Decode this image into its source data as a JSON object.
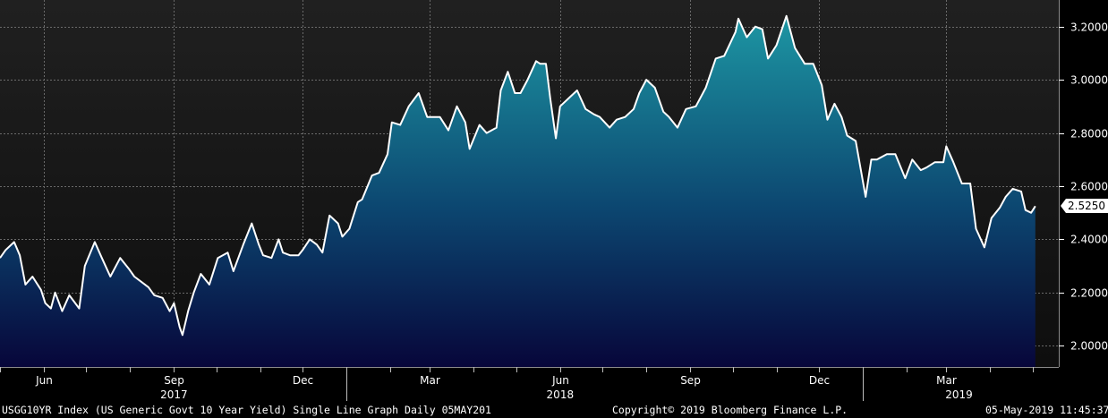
{
  "chart_data": {
    "type": "area",
    "ylim": [
      1.92,
      3.3
    ],
    "y_ticks": [
      "2.0000",
      "2.2000",
      "2.4000",
      "2.6000",
      "2.8000",
      "3.0000",
      "3.2000"
    ],
    "y_tick_values": [
      2.0,
      2.2,
      2.4,
      2.6,
      2.8,
      3.0,
      3.2
    ],
    "grid": true,
    "last_value": 2.525,
    "last_value_label": "2.5250",
    "x_month_ticks": [
      {
        "label": "Jun",
        "date": "2017-06-01"
      },
      {
        "label": "Sep",
        "date": "2017-09-01"
      },
      {
        "label": "Dec",
        "date": "2017-12-01"
      },
      {
        "label": "Mar",
        "date": "2018-03-01"
      },
      {
        "label": "Jun",
        "date": "2018-06-01"
      },
      {
        "label": "Sep",
        "date": "2018-09-01"
      },
      {
        "label": "Dec",
        "date": "2018-12-01"
      },
      {
        "label": "Mar",
        "date": "2019-03-01"
      }
    ],
    "x_year_labels": [
      {
        "label": "2017",
        "date": "2017-09-01"
      },
      {
        "label": "2018",
        "date": "2018-06-01"
      },
      {
        "label": "2019",
        "date": "2019-03-10"
      }
    ],
    "x_year_dividers": [
      "2018-01-01",
      "2019-01-01"
    ],
    "x_range": [
      "2017-05-01",
      "2019-05-05"
    ],
    "series": [
      {
        "color": "#ffffff",
        "points": [
          [
            "2017-05-01",
            2.33
          ],
          [
            "2017-05-05",
            2.36
          ],
          [
            "2017-05-11",
            2.39
          ],
          [
            "2017-05-15",
            2.34
          ],
          [
            "2017-05-19",
            2.23
          ],
          [
            "2017-05-24",
            2.26
          ],
          [
            "2017-05-30",
            2.21
          ],
          [
            "2017-06-02",
            2.16
          ],
          [
            "2017-06-06",
            2.14
          ],
          [
            "2017-06-09",
            2.2
          ],
          [
            "2017-06-14",
            2.13
          ],
          [
            "2017-06-19",
            2.19
          ],
          [
            "2017-06-26",
            2.14
          ],
          [
            "2017-06-30",
            2.3
          ],
          [
            "2017-07-07",
            2.39
          ],
          [
            "2017-07-12",
            2.33
          ],
          [
            "2017-07-18",
            2.26
          ],
          [
            "2017-07-25",
            2.33
          ],
          [
            "2017-07-31",
            2.29
          ],
          [
            "2017-08-04",
            2.26
          ],
          [
            "2017-08-09",
            2.24
          ],
          [
            "2017-08-14",
            2.22
          ],
          [
            "2017-08-18",
            2.19
          ],
          [
            "2017-08-24",
            2.18
          ],
          [
            "2017-08-29",
            2.13
          ],
          [
            "2017-09-01",
            2.16
          ],
          [
            "2017-09-05",
            2.07
          ],
          [
            "2017-09-07",
            2.04
          ],
          [
            "2017-09-11",
            2.13
          ],
          [
            "2017-09-15",
            2.2
          ],
          [
            "2017-09-20",
            2.27
          ],
          [
            "2017-09-26",
            2.23
          ],
          [
            "2017-10-02",
            2.33
          ],
          [
            "2017-10-09",
            2.35
          ],
          [
            "2017-10-13",
            2.28
          ],
          [
            "2017-10-20",
            2.38
          ],
          [
            "2017-10-26",
            2.46
          ],
          [
            "2017-10-31",
            2.38
          ],
          [
            "2017-11-03",
            2.34
          ],
          [
            "2017-11-09",
            2.33
          ],
          [
            "2017-11-14",
            2.4
          ],
          [
            "2017-11-17",
            2.35
          ],
          [
            "2017-11-22",
            2.34
          ],
          [
            "2017-11-28",
            2.34
          ],
          [
            "2017-12-01",
            2.36
          ],
          [
            "2017-12-06",
            2.4
          ],
          [
            "2017-12-11",
            2.38
          ],
          [
            "2017-12-15",
            2.35
          ],
          [
            "2017-12-20",
            2.49
          ],
          [
            "2017-12-26",
            2.46
          ],
          [
            "2017-12-29",
            2.41
          ],
          [
            "2018-01-03",
            2.44
          ],
          [
            "2018-01-09",
            2.54
          ],
          [
            "2018-01-12",
            2.55
          ],
          [
            "2018-01-19",
            2.64
          ],
          [
            "2018-01-24",
            2.65
          ],
          [
            "2018-01-30",
            2.72
          ],
          [
            "2018-02-02",
            2.84
          ],
          [
            "2018-02-08",
            2.83
          ],
          [
            "2018-02-14",
            2.9
          ],
          [
            "2018-02-21",
            2.95
          ],
          [
            "2018-02-27",
            2.86
          ],
          [
            "2018-03-02",
            2.86
          ],
          [
            "2018-03-08",
            2.86
          ],
          [
            "2018-03-14",
            2.81
          ],
          [
            "2018-03-20",
            2.9
          ],
          [
            "2018-03-26",
            2.84
          ],
          [
            "2018-03-29",
            2.74
          ],
          [
            "2018-04-05",
            2.83
          ],
          [
            "2018-04-10",
            2.8
          ],
          [
            "2018-04-17",
            2.82
          ],
          [
            "2018-04-20",
            2.96
          ],
          [
            "2018-04-25",
            3.03
          ],
          [
            "2018-04-30",
            2.95
          ],
          [
            "2018-05-04",
            2.95
          ],
          [
            "2018-05-09",
            3.0
          ],
          [
            "2018-05-15",
            3.07
          ],
          [
            "2018-05-18",
            3.06
          ],
          [
            "2018-05-22",
            3.06
          ],
          [
            "2018-05-25",
            2.93
          ],
          [
            "2018-05-29",
            2.78
          ],
          [
            "2018-06-01",
            2.9
          ],
          [
            "2018-06-07",
            2.93
          ],
          [
            "2018-06-13",
            2.96
          ],
          [
            "2018-06-19",
            2.89
          ],
          [
            "2018-06-25",
            2.87
          ],
          [
            "2018-06-29",
            2.86
          ],
          [
            "2018-07-06",
            2.82
          ],
          [
            "2018-07-11",
            2.85
          ],
          [
            "2018-07-17",
            2.86
          ],
          [
            "2018-07-23",
            2.89
          ],
          [
            "2018-07-27",
            2.95
          ],
          [
            "2018-08-01",
            3.0
          ],
          [
            "2018-08-07",
            2.97
          ],
          [
            "2018-08-13",
            2.88
          ],
          [
            "2018-08-17",
            2.86
          ],
          [
            "2018-08-23",
            2.82
          ],
          [
            "2018-08-29",
            2.89
          ],
          [
            "2018-09-05",
            2.9
          ],
          [
            "2018-09-12",
            2.97
          ],
          [
            "2018-09-19",
            3.08
          ],
          [
            "2018-09-25",
            3.09
          ],
          [
            "2018-10-03",
            3.18
          ],
          [
            "2018-10-05",
            3.23
          ],
          [
            "2018-10-11",
            3.16
          ],
          [
            "2018-10-17",
            3.2
          ],
          [
            "2018-10-22",
            3.19
          ],
          [
            "2018-10-26",
            3.08
          ],
          [
            "2018-11-01",
            3.13
          ],
          [
            "2018-11-08",
            3.24
          ],
          [
            "2018-11-14",
            3.12
          ],
          [
            "2018-11-21",
            3.06
          ],
          [
            "2018-11-27",
            3.06
          ],
          [
            "2018-12-03",
            2.98
          ],
          [
            "2018-12-07",
            2.85
          ],
          [
            "2018-12-12",
            2.91
          ],
          [
            "2018-12-17",
            2.86
          ],
          [
            "2018-12-21",
            2.79
          ],
          [
            "2018-12-27",
            2.77
          ],
          [
            "2019-01-03",
            2.56
          ],
          [
            "2019-01-07",
            2.7
          ],
          [
            "2019-01-11",
            2.7
          ],
          [
            "2019-01-18",
            2.72
          ],
          [
            "2019-01-24",
            2.72
          ],
          [
            "2019-01-31",
            2.63
          ],
          [
            "2019-02-05",
            2.7
          ],
          [
            "2019-02-11",
            2.66
          ],
          [
            "2019-02-15",
            2.67
          ],
          [
            "2019-02-21",
            2.69
          ],
          [
            "2019-02-27",
            2.69
          ],
          [
            "2019-03-01",
            2.75
          ],
          [
            "2019-03-06",
            2.69
          ],
          [
            "2019-03-12",
            2.61
          ],
          [
            "2019-03-18",
            2.61
          ],
          [
            "2019-03-22",
            2.44
          ],
          [
            "2019-03-28",
            2.37
          ],
          [
            "2019-04-02",
            2.48
          ],
          [
            "2019-04-08",
            2.52
          ],
          [
            "2019-04-12",
            2.56
          ],
          [
            "2019-04-17",
            2.59
          ],
          [
            "2019-04-23",
            2.58
          ],
          [
            "2019-04-26",
            2.51
          ],
          [
            "2019-04-30",
            2.5
          ],
          [
            "2019-05-03",
            2.525
          ]
        ]
      }
    ]
  },
  "footer": {
    "index_description": "USGG10YR Index (US Generic Govt 10 Year Yield) Single Line Graph  Daily 05MAY201",
    "copyright": "Copyright© 2019 Bloomberg Finance L.P.",
    "timestamp": "05-May-2019 11:45:37"
  },
  "colors": {
    "background_top": "#1e1e1e",
    "background_bottom": "#101010",
    "area_top": "#1c8c9c",
    "area_bottom": "#0a0a4c",
    "line": "#ffffff",
    "grid": "#6a6a6a"
  }
}
